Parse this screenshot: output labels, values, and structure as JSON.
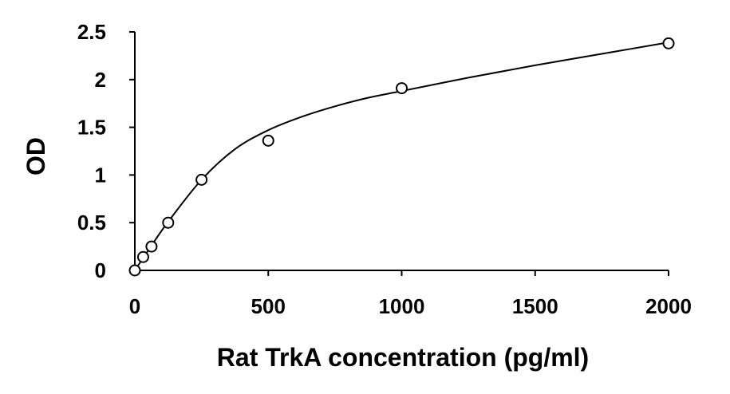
{
  "chart_data": {
    "type": "scatter",
    "title": "",
    "xlabel": "Rat TrkA concentration (pg/ml)",
    "ylabel": "OD",
    "xlim": [
      0,
      2000
    ],
    "ylim": [
      0,
      2.5
    ],
    "x_ticks": [
      0,
      500,
      1000,
      1500,
      2000
    ],
    "x_tick_labels": [
      "0",
      "500",
      "1000",
      "1500",
      "2000"
    ],
    "y_ticks": [
      0,
      0.5,
      1,
      1.5,
      2,
      2.5
    ],
    "y_tick_labels": [
      "0",
      "0.5",
      "1",
      "1.5",
      "2",
      "2.5"
    ],
    "grid": false,
    "legend": "none",
    "series": [
      {
        "x": [
          0,
          31.25,
          62.5,
          125,
          250,
          500,
          1000,
          2000
        ],
        "y": [
          0.0,
          0.14,
          0.25,
          0.5,
          0.95,
          1.36,
          1.91,
          2.38
        ],
        "marker": "open-circle",
        "color": "#000000"
      }
    ],
    "fit_curve": {
      "x": [
        0,
        31.25,
        62.5,
        125,
        250,
        375,
        500,
        625,
        750,
        875,
        1000,
        1250,
        1500,
        1750,
        2000
      ],
      "y": [
        0.0,
        0.13,
        0.26,
        0.51,
        0.95,
        1.27,
        1.47,
        1.61,
        1.72,
        1.81,
        1.88,
        2.02,
        2.15,
        2.27,
        2.39
      ],
      "color": "#000000"
    }
  }
}
